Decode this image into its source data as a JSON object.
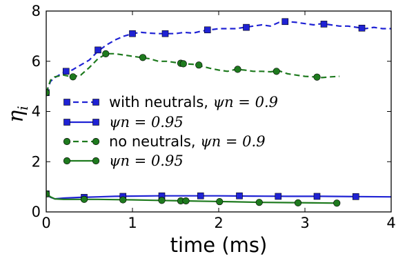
{
  "chart_data": {
    "type": "line",
    "xlabel": "time (ms)",
    "ylabel": "η",
    "ylabel_sub": "i",
    "xlim": [
      0,
      4
    ],
    "ylim": [
      0,
      8
    ],
    "xticks": [
      0,
      1,
      2,
      3,
      4
    ],
    "yticks": [
      0,
      2,
      4,
      6,
      8
    ],
    "xtick_labels": [
      "0",
      "1",
      "2",
      "3",
      "4"
    ],
    "ytick_labels": [
      "0",
      "2",
      "4",
      "6",
      "8"
    ],
    "grid": false,
    "legend_position": "center-left",
    "series": [
      {
        "name": "with neutrals, ",
        "math": "ψn = 0.9",
        "color": "#1f22d4",
        "line": "dashed",
        "marker": "square",
        "x": [
          0.0,
          0.05,
          0.1,
          0.2,
          0.3,
          0.4,
          0.5,
          0.6,
          0.7,
          0.8,
          0.9,
          1.0,
          1.1,
          1.2,
          1.3,
          1.4,
          1.5,
          1.6,
          1.7,
          1.8,
          1.9,
          2.0,
          2.1,
          2.2,
          2.3,
          2.4,
          2.5,
          2.6,
          2.7,
          2.8,
          2.9,
          3.0,
          3.1,
          3.2,
          3.3,
          3.4,
          3.5,
          3.6,
          3.7,
          3.8,
          3.9,
          4.0
        ],
        "y": [
          4.75,
          5.2,
          5.35,
          5.55,
          5.65,
          5.85,
          6.05,
          6.4,
          6.65,
          6.85,
          7.0,
          7.1,
          7.15,
          7.12,
          7.1,
          7.1,
          7.1,
          7.15,
          7.12,
          7.2,
          7.25,
          7.3,
          7.3,
          7.3,
          7.35,
          7.4,
          7.45,
          7.4,
          7.55,
          7.58,
          7.55,
          7.5,
          7.45,
          7.5,
          7.45,
          7.4,
          7.4,
          7.35,
          7.3,
          7.35,
          7.3,
          7.3
        ],
        "marker_x": [
          0.0,
          0.23,
          0.6,
          1.0,
          1.38,
          1.87,
          2.32,
          2.77,
          3.22,
          3.66
        ],
        "marker_y": [
          4.75,
          5.6,
          6.45,
          7.1,
          7.1,
          7.25,
          7.35,
          7.58,
          7.48,
          7.32
        ]
      },
      {
        "name": "",
        "math": "ψn = 0.95",
        "color": "#1f22d4",
        "line": "solid",
        "marker": "square",
        "x": [
          0.0,
          0.05,
          0.1,
          0.2,
          0.4,
          0.6,
          0.8,
          1.0,
          1.3,
          1.6,
          2.0,
          2.4,
          2.8,
          3.2,
          3.6,
          4.0
        ],
        "y": [
          0.72,
          0.58,
          0.52,
          0.55,
          0.58,
          0.6,
          0.62,
          0.63,
          0.64,
          0.64,
          0.64,
          0.63,
          0.62,
          0.62,
          0.61,
          0.6
        ],
        "marker_x": [
          0.0,
          0.44,
          0.89,
          1.34,
          1.79,
          2.24,
          2.69,
          3.14,
          3.59
        ],
        "marker_y": [
          0.72,
          0.58,
          0.62,
          0.64,
          0.64,
          0.64,
          0.62,
          0.62,
          0.61
        ]
      },
      {
        "name": "no neutrals, ",
        "math": "ψn = 0.9",
        "color": "#1e7a1e",
        "line": "dashed",
        "marker": "circle",
        "x": [
          0.0,
          0.05,
          0.1,
          0.2,
          0.3,
          0.4,
          0.5,
          0.6,
          0.7,
          0.8,
          0.9,
          1.0,
          1.1,
          1.2,
          1.3,
          1.4,
          1.5,
          1.6,
          1.7,
          1.8,
          1.9,
          2.0,
          2.1,
          2.2,
          2.3,
          2.4,
          2.5,
          2.6,
          2.7,
          2.8,
          2.9,
          3.0,
          3.1,
          3.2,
          3.3,
          3.4
        ],
        "y": [
          4.75,
          5.25,
          5.38,
          5.45,
          5.38,
          5.45,
          5.75,
          6.1,
          6.3,
          6.3,
          6.25,
          6.2,
          6.15,
          6.1,
          6.0,
          6.0,
          5.95,
          5.9,
          5.88,
          5.8,
          5.72,
          5.65,
          5.6,
          5.68,
          5.65,
          5.6,
          5.6,
          5.58,
          5.62,
          5.5,
          5.45,
          5.4,
          5.38,
          5.35,
          5.38,
          5.4
        ],
        "marker_x": [
          0.0,
          0.31,
          0.69,
          1.12,
          1.56,
          1.59,
          1.77,
          2.22,
          2.67,
          3.14
        ],
        "marker_y": [
          4.75,
          5.38,
          6.3,
          6.15,
          5.92,
          5.9,
          5.85,
          5.68,
          5.6,
          5.37
        ]
      },
      {
        "name": "",
        "math": "ψn = 0.95",
        "color": "#1e7a1e",
        "line": "solid",
        "marker": "circle",
        "x": [
          0.0,
          0.05,
          0.1,
          0.2,
          0.4,
          0.6,
          0.8,
          1.0,
          1.3,
          1.6,
          1.9,
          2.2,
          2.5,
          2.8,
          3.1,
          3.4
        ],
        "y": [
          0.72,
          0.6,
          0.52,
          0.5,
          0.5,
          0.5,
          0.49,
          0.48,
          0.46,
          0.44,
          0.42,
          0.4,
          0.38,
          0.37,
          0.36,
          0.35
        ],
        "marker_x": [
          0.0,
          0.44,
          0.89,
          1.34,
          1.56,
          1.62,
          2.01,
          2.47,
          2.92,
          3.37
        ],
        "marker_y": [
          0.72,
          0.5,
          0.48,
          0.46,
          0.44,
          0.44,
          0.41,
          0.38,
          0.36,
          0.35
        ]
      }
    ]
  }
}
